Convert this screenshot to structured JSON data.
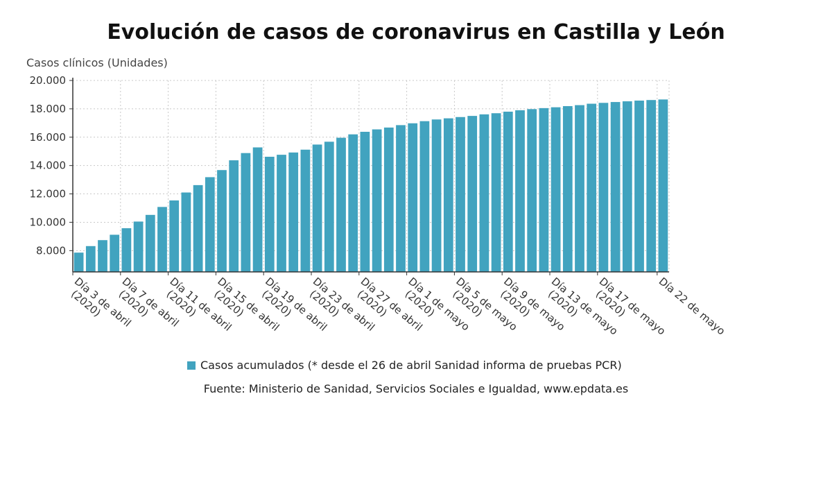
{
  "chart_data": {
    "type": "bar",
    "title": "Evolución de casos de coronavirus en Castilla y León",
    "ylabel": "Casos clínicos (Unidades)",
    "xlabel": "",
    "ylim": [
      6500,
      20000
    ],
    "yticks": [
      8000,
      10000,
      12000,
      14000,
      16000,
      18000,
      20000
    ],
    "ytick_labels": [
      "8.000",
      "10.000",
      "12.000",
      "14.000",
      "16.000",
      "18.000",
      "20.000"
    ],
    "grid": true,
    "legend_position": "bottom",
    "series": [
      {
        "name": "Casos acumulados (* desde el 26 de abril Sanidad informa de pruebas PCR)",
        "color": "#41a3bf",
        "values": [
          7860,
          8320,
          8740,
          9120,
          9580,
          10050,
          10520,
          11080,
          11540,
          12100,
          12620,
          13180,
          13680,
          14370,
          14880,
          15280,
          14620,
          14760,
          14920,
          15120,
          15480,
          15680,
          15960,
          16200,
          16380,
          16550,
          16680,
          16850,
          16980,
          17130,
          17250,
          17330,
          17420,
          17500,
          17610,
          17690,
          17800,
          17900,
          17980,
          18050,
          18110,
          18190,
          18260,
          18360,
          18420,
          18480,
          18530,
          18580,
          18620,
          18660
        ]
      }
    ],
    "x_tick_labels": [
      {
        "index": 0,
        "lines": [
          "Día 3 de abril",
          "(2020)"
        ]
      },
      {
        "index": 4,
        "lines": [
          "Día 7 de abril",
          "(2020)"
        ]
      },
      {
        "index": 8,
        "lines": [
          "Día 11 de abril",
          "(2020)"
        ]
      },
      {
        "index": 12,
        "lines": [
          "Día 15 de abril",
          "(2020)"
        ]
      },
      {
        "index": 16,
        "lines": [
          "Día 19 de abril",
          "(2020)"
        ]
      },
      {
        "index": 20,
        "lines": [
          "Día 23 de abril",
          "(2020)"
        ]
      },
      {
        "index": 24,
        "lines": [
          "Día 27 de abril",
          "(2020)"
        ]
      },
      {
        "index": 28,
        "lines": [
          "Día 1 de mayo",
          "(2020)"
        ]
      },
      {
        "index": 32,
        "lines": [
          "Día 5 de mayo",
          "(2020)"
        ]
      },
      {
        "index": 36,
        "lines": [
          "Día 9 de mayo",
          "(2020)"
        ]
      },
      {
        "index": 40,
        "lines": [
          "Día 13 de mayo",
          "(2020)"
        ]
      },
      {
        "index": 44,
        "lines": [
          "Día 17 de mayo",
          "(2020)"
        ]
      },
      {
        "index": 49,
        "lines": [
          "Día 22 de mayo"
        ]
      }
    ],
    "source": "Fuente: Ministerio de Sanidad, Servicios Sociales e Igualdad, www.epdata.es"
  }
}
